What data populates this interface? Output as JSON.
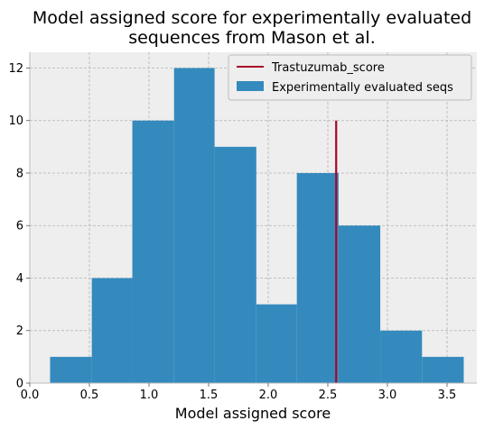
{
  "chart_data": {
    "type": "bar",
    "title_lines": [
      "Model assigned score for experimentally evaluated",
      "sequences from Mason et al."
    ],
    "xlabel": "Model assigned score",
    "ylabel": "",
    "xlim": [
      0.0,
      3.75
    ],
    "ylim": [
      0,
      12.6
    ],
    "x_ticks": [
      0.0,
      0.5,
      1.0,
      1.5,
      2.0,
      2.5,
      3.0,
      3.5
    ],
    "x_tick_labels": [
      "0.0",
      "0.5",
      "1.0",
      "1.5",
      "2.0",
      "2.5",
      "3.0",
      "3.5"
    ],
    "y_ticks": [
      0,
      2,
      4,
      6,
      8,
      10,
      12
    ],
    "y_tick_labels": [
      "0",
      "2",
      "4",
      "6",
      "8",
      "10",
      "12"
    ],
    "grid": true,
    "legend_position": "top-right",
    "histogram": {
      "name": "Experimentally evaluated seqs",
      "color": "#348ABD",
      "bin_edges": [
        0.17,
        0.52,
        0.86,
        1.21,
        1.55,
        1.9,
        2.24,
        2.59,
        2.94,
        3.29,
        3.64
      ],
      "counts": [
        1,
        4,
        10,
        12,
        9,
        3,
        8,
        6,
        2,
        1
      ]
    },
    "vline": {
      "name": "Trastuzumab_score",
      "x": 2.57,
      "y_range": [
        0,
        10
      ],
      "color": "#A60628"
    }
  }
}
